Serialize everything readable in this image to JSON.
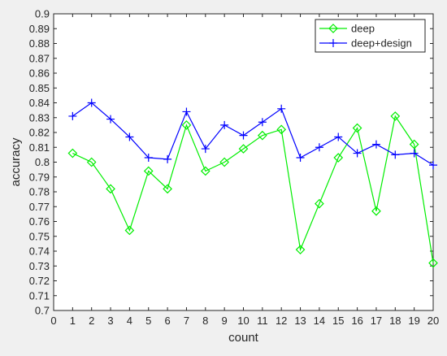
{
  "chart_data": {
    "type": "line",
    "xlabel": "count",
    "ylabel": "accuracy",
    "xlim": [
      0,
      20
    ],
    "ylim": [
      0.7,
      0.9
    ],
    "xticks": [
      "0",
      "1",
      "2",
      "3",
      "4",
      "5",
      "6",
      "7",
      "8",
      "9",
      "10",
      "11",
      "12",
      "13",
      "14",
      "15",
      "16",
      "17",
      "18",
      "19",
      "20"
    ],
    "yticks": [
      "0.7",
      "0.71",
      "0.72",
      "0.73",
      "0.74",
      "0.75",
      "0.76",
      "0.77",
      "0.78",
      "0.79",
      "0.8",
      "0.81",
      "0.82",
      "0.83",
      "0.84",
      "0.85",
      "0.86",
      "0.87",
      "0.88",
      "0.89",
      "0.9"
    ],
    "grid": false,
    "legend_position": "top-right",
    "x": [
      1,
      2,
      3,
      4,
      5,
      6,
      7,
      8,
      9,
      10,
      11,
      12,
      13,
      14,
      15,
      16,
      17,
      18,
      19,
      20
    ],
    "series": [
      {
        "name": "deep",
        "color": "#00ee00",
        "marker": "diamond",
        "values": [
          0.806,
          0.8,
          0.782,
          0.754,
          0.794,
          0.782,
          0.825,
          0.794,
          0.8,
          0.809,
          0.818,
          0.822,
          0.741,
          0.772,
          0.803,
          0.823,
          0.767,
          0.831,
          0.812,
          0.732
        ]
      },
      {
        "name": "deep+design",
        "color": "#0000ff",
        "marker": "plus",
        "values": [
          0.831,
          0.84,
          0.829,
          0.817,
          0.803,
          0.802,
          0.834,
          0.809,
          0.825,
          0.818,
          0.827,
          0.836,
          0.803,
          0.81,
          0.817,
          0.806,
          0.812,
          0.805,
          0.806,
          0.798
        ]
      }
    ]
  }
}
